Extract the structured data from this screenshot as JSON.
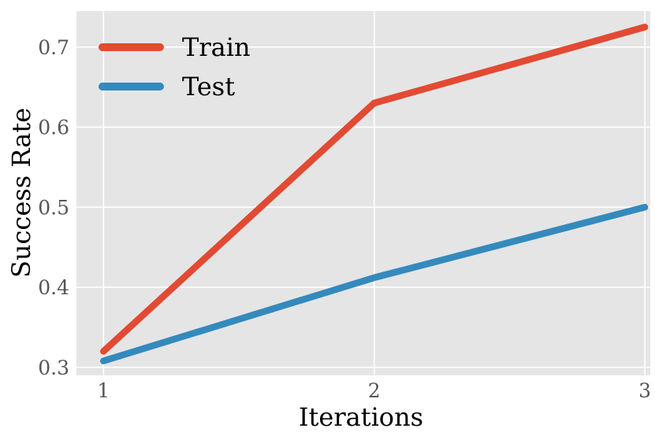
{
  "chart_data": {
    "type": "line",
    "xlabel": "Iterations",
    "ylabel": "Success Rate",
    "x": [
      1,
      2,
      3
    ],
    "x_ticks": [
      "1",
      "2",
      "3"
    ],
    "y_ticks": [
      "0.3",
      "0.4",
      "0.5",
      "0.6",
      "0.7"
    ],
    "xlim": [
      0.9,
      3.02
    ],
    "ylim": [
      0.29,
      0.745
    ],
    "grid": true,
    "legend_position": "top-left",
    "plot_background": "#e5e5e5",
    "grid_color": "#ffffff",
    "series": [
      {
        "name": "Train",
        "color": "#e24a33",
        "values": [
          0.32,
          0.63,
          0.725
        ]
      },
      {
        "name": "Test",
        "color": "#348abd",
        "values": [
          0.308,
          0.412,
          0.5
        ]
      }
    ]
  }
}
